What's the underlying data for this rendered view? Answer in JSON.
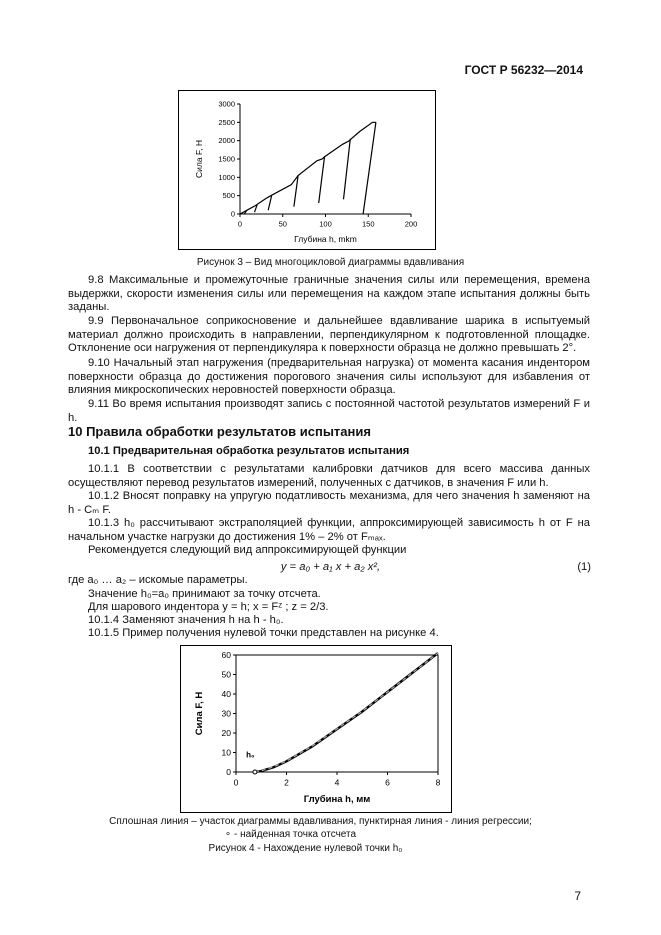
{
  "header": {
    "doc_id": "ГОСТ Р 56232—2014"
  },
  "figure3": {
    "caption": "Рисунок 3 – Вид многоцикловой диаграммы вдавливания",
    "chart_data": {
      "type": "line",
      "xlabel": "Глубина h, mkm",
      "ylabel": "Сила F, Н",
      "xlim": [
        0,
        200
      ],
      "ylim": [
        0,
        3000
      ],
      "xticks": [
        0,
        50,
        100,
        150,
        200
      ],
      "yticks": [
        0,
        500,
        1000,
        1500,
        2000,
        2500,
        3000
      ],
      "grid": false,
      "series": [
        {
          "values": [
            [
              0,
              0
            ],
            [
              8,
              100
            ],
            [
              18,
              230
            ],
            [
              30,
              420
            ],
            [
              36,
              500
            ],
            [
              60,
              800
            ],
            [
              68,
              1050
            ],
            [
              90,
              1450
            ],
            [
              96,
              1500
            ],
            [
              100,
              1580
            ],
            [
              120,
              1900
            ],
            [
              128,
              2000
            ],
            [
              130,
              2050
            ],
            [
              140,
              2250
            ],
            [
              155,
              2500
            ],
            [
              159,
              2500
            ]
          ]
        },
        {
          "values": [
            [
              8,
              100
            ],
            [
              5,
              0
            ]
          ]
        },
        {
          "values": [
            [
              20,
              250
            ],
            [
              17,
              50
            ]
          ]
        },
        {
          "values": [
            [
              37,
              500
            ],
            [
              33,
              100
            ]
          ]
        },
        {
          "values": [
            [
              68,
              1050
            ],
            [
              63,
              200
            ]
          ]
        },
        {
          "values": [
            [
              99,
              1580
            ],
            [
              92,
              300
            ]
          ]
        },
        {
          "values": [
            [
              129,
              2050
            ],
            [
              121,
              400
            ]
          ]
        },
        {
          "values": [
            [
              159,
              2500
            ],
            [
              144,
              0
            ]
          ]
        }
      ],
      "color": "#000000"
    }
  },
  "sections": {
    "p9_8": "9.8 Максимальные и промежуточные граничные значения силы или перемещения, времена выдержки, скорости изменения силы или перемещения на каждом этапе испытания должны быть заданы.",
    "p9_9": "9.9 Первоначальное соприкосновение и дальнейшее вдавливание шарика в испытуемый материал должно происходить в направлении, перпендикулярном к подготовленной площадке. Отклонение оси нагружения от перпендикуляра к поверхности образца не должно превышать 2°.",
    "p9_10": "9.10 Начальный этап нагружения (предварительная нагрузка) от момента касания индентором поверхности образца до достижения порогового значения силы используют для избавления от влияния микроскопических неровностей поверхности образца.",
    "p9_11": "9.11 Во время испытания производят запись с постоянной частотой результатов измерений F и h.",
    "h10": "10 Правила обработки результатов испытания",
    "h10_1": "10.1 Предварительная обработка результатов испытания",
    "p10_1_1": "10.1.1 В соответствии с результатами калибровки датчиков для всего массива данных осуществляют перевод результатов измерений, полученных с датчиков, в значения F или h.",
    "p10_1_2": "10.1.2 Вносят поправку на упругую податливость механизма, для чего значения h заменяют на h - Cₘ F.",
    "p10_1_3": "10.1.3 h₀ рассчитывают экстраполяцией функции, аппроксимирующей зависимость h от F на начальном участке нагрузки до достижения 1% – 2% от Fₘₐₓ.",
    "recommend": "Рекомендуется следующий вид аппроксимирующей функции",
    "formula": "y = a₀ + a₁ x + a₂ x²,",
    "eq_no": "(1)",
    "where": "где a₀ … a₂ – искомые параметры.",
    "h0_def": "Значение h₀=a₀ принимают за точку отсчета.",
    "ball": "Для шарового индентора y = h; x = Fᶻ ; z = 2/3.",
    "p10_1_4": "10.1.4 Заменяют значения h на h - h₀.",
    "p10_1_5": "10.1.5 Пример получения нулевой точки представлен на рисунке 4."
  },
  "figure4": {
    "legend_line1": "Сплошная линия – участок диаграммы вдавливания, пунктирная линия - линия регрессии;",
    "legend_line2": "∘ - найденная точка отсчета",
    "caption": "Рисунок 4 - Нахождение нулевой точки h₀",
    "chart_data": {
      "type": "line",
      "xlabel": "Глубина h, мм",
      "ylabel": "Сила F, Н",
      "xlim": [
        0,
        8
      ],
      "ylim": [
        0,
        60
      ],
      "xticks": [
        0,
        2,
        4,
        6,
        8
      ],
      "yticks": [
        0,
        10,
        20,
        30,
        40,
        50,
        60
      ],
      "grid": false,
      "annotation": "h₀",
      "series": [
        {
          "style": "solid",
          "values": [
            [
              0.75,
              0
            ],
            [
              1,
              0.5
            ],
            [
              1.5,
              2.5
            ],
            [
              2,
              5.5
            ],
            [
              3,
              13
            ],
            [
              4,
              22
            ],
            [
              5,
              31
            ],
            [
              6,
              41
            ],
            [
              7,
              51
            ],
            [
              8,
              61
            ]
          ]
        },
        {
          "style": "dashed",
          "values": [
            [
              0.75,
              0
            ],
            [
              1,
              0.6
            ],
            [
              1.5,
              2.7
            ],
            [
              2,
              5.6
            ],
            [
              3,
              13.2
            ],
            [
              4,
              22.1
            ],
            [
              5,
              31.2
            ],
            [
              6,
              41
            ],
            [
              7,
              51
            ],
            [
              8,
              61
            ]
          ]
        }
      ],
      "zero_point": [
        0.75,
        0
      ]
    }
  },
  "page_number": "7"
}
